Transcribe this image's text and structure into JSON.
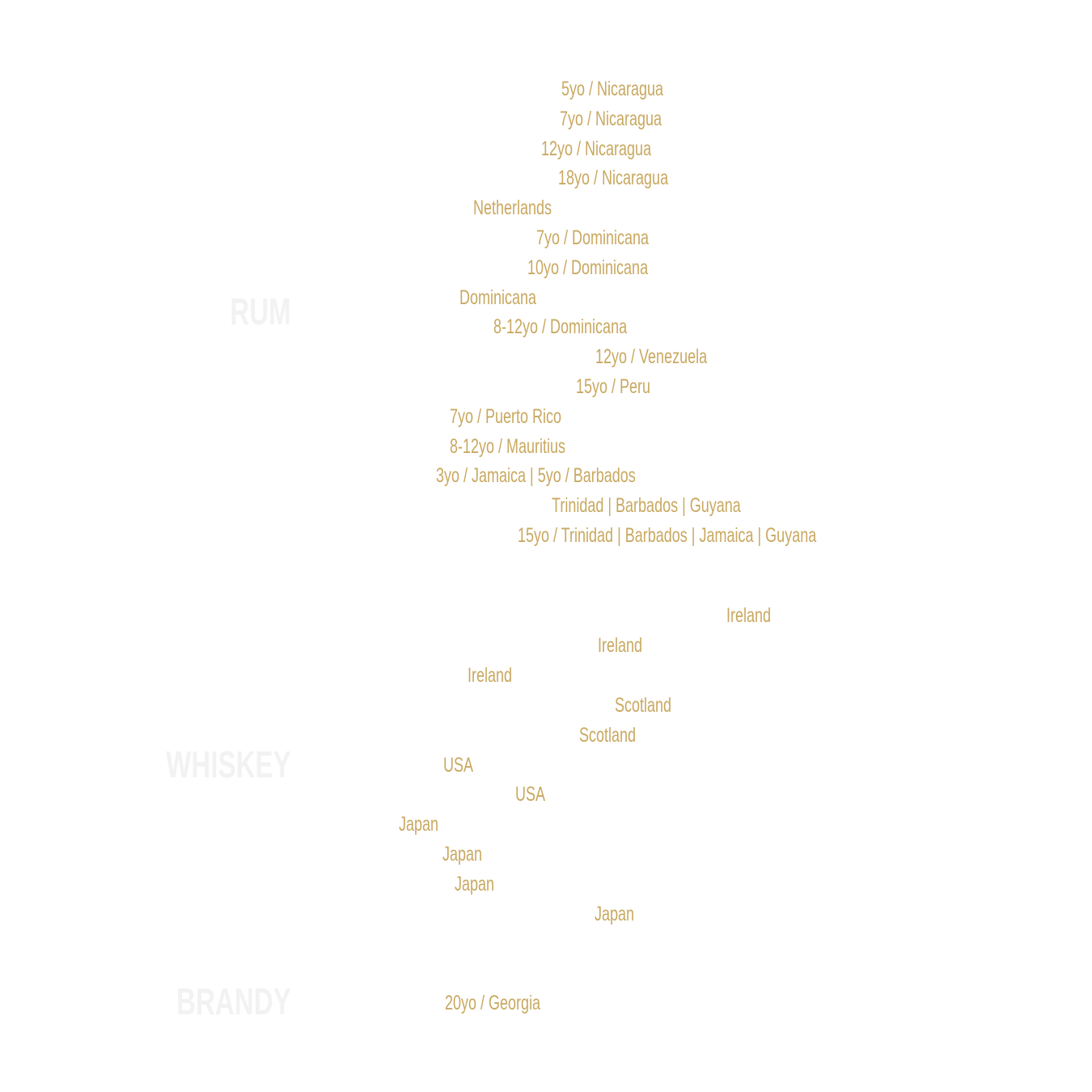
{
  "sections": [
    {
      "title": "RUM",
      "items": [
        "5yo / Nicaragua",
        "7yo / Nicaragua",
        "12yo / Nicaragua",
        "18yo / Nicaragua",
        "Netherlands",
        "7yo / Dominicana",
        "10yo / Dominicana",
        "Dominicana",
        "8-12yo / Dominicana",
        "12yo / Venezuela",
        "15yo / Peru",
        "7yo / Puerto Rico",
        "8-12yo / Mauritius",
        "3yo / Jamaica | 5yo / Barbados",
        "Trinidad | Barbados | Guyana",
        "15yo / Trinidad | Barbados | Jamaica | Guyana"
      ]
    },
    {
      "title": "WHISKEY",
      "items": [
        "Ireland",
        "Ireland",
        "Ireland",
        "Scotland",
        "Scotland",
        "USA",
        "USA",
        "Japan",
        "Japan",
        "Japan",
        "Japan"
      ]
    },
    {
      "title": "BRANDY",
      "items": [
        "20yo / Georgia"
      ]
    }
  ]
}
